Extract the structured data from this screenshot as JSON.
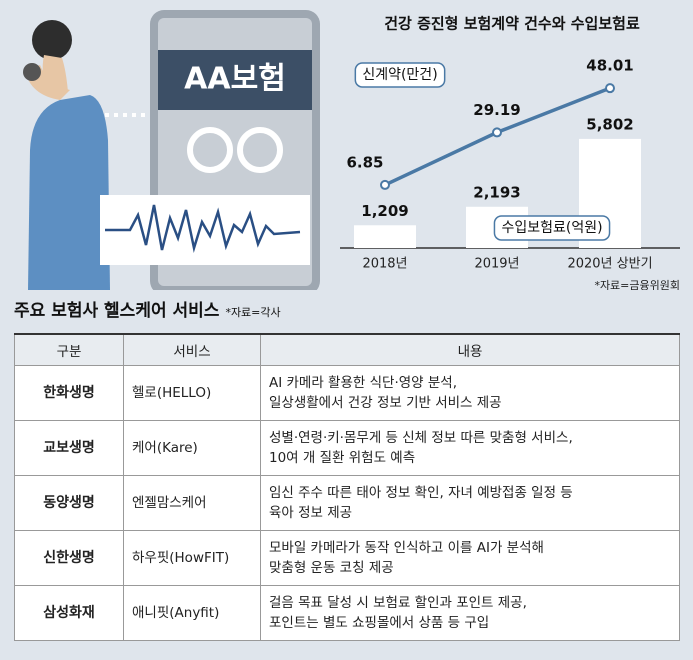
{
  "illustration": {
    "label": "AA보험"
  },
  "chart_data": {
    "type": "bar_line",
    "title": "건강 증진형 보험계약 건수와 수입보험료",
    "categories": [
      "2018년",
      "2019년",
      "2020년 상반기"
    ],
    "series": [
      {
        "name": "수입보험료(억원)",
        "type": "bar",
        "color": "#ffffff",
        "values": [
          1209,
          2193,
          5802
        ],
        "value_labels": [
          "1,209",
          "2,193",
          "5,802"
        ]
      },
      {
        "name": "신계약(만건)",
        "type": "line",
        "axis": "y2",
        "color": "#4a79a5",
        "values": [
          6.85,
          29.19,
          48.01
        ]
      }
    ],
    "ylim": [
      0,
      10000
    ],
    "y2lim": [
      -20,
      60
    ],
    "source": "*자료=금융위원회"
  },
  "table": {
    "title": "주요 보험사 헬스케어 서비스",
    "note": "*자료=각사",
    "columns": [
      "구분",
      "서비스",
      "내용"
    ],
    "rows": [
      [
        "한화생명",
        "헬로(HELLO)",
        [
          "AI 카메라 활용한 식단·영양 분석,",
          "일상생활에서 건강 정보 기반 서비스 제공"
        ]
      ],
      [
        "교보생명",
        "케어(Kare)",
        [
          "성별·연령·키·몸무게 등 신체 정보 따른 맞춤형 서비스,",
          "10여 개 질환 위험도 예측"
        ]
      ],
      [
        "동양생명",
        "엔젤맘스케어",
        [
          "임신 주수 따른 태아 정보 확인, 자녀 예방접종 일정 등",
          "육아 정보 제공"
        ]
      ],
      [
        "신한생명",
        "하우핏(HowFIT)",
        [
          "모바일 카메라가 동작 인식하고 이를 AI가 분석해",
          "맞춤형 운동 코칭 제공"
        ]
      ],
      [
        "삼성화재",
        "애니핏(Anyfit)",
        [
          "걸음 목표 달성 시 보험료 할인과 포인트 제공,",
          "포인트는 별도 쇼핑몰에서 상품 등 구입"
        ]
      ]
    ]
  }
}
